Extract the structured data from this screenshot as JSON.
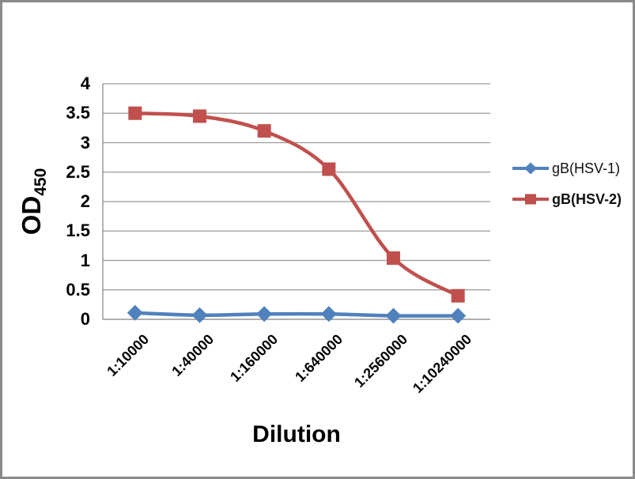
{
  "frame": {
    "border_color": "#8a8a8a",
    "background_color": "#ffffff"
  },
  "chart_data": {
    "type": "line",
    "title": "",
    "xlabel": "Dilution",
    "ylabel": "OD",
    "ylabel_subscript": "450",
    "categories": [
      "1:10000",
      "1:40000",
      "1:160000",
      "1:640000",
      "1:2560000",
      "1:10240000"
    ],
    "series": [
      {
        "name": "gB(HSV-1)",
        "color": "#4F81BD",
        "marker": "diamond",
        "legend_bold": false,
        "values": [
          0.11,
          0.07,
          0.09,
          0.09,
          0.06,
          0.06
        ]
      },
      {
        "name": "gB(HSV-2)",
        "color": "#C0504D",
        "marker": "square",
        "legend_bold": true,
        "values": [
          3.5,
          3.45,
          3.2,
          2.55,
          1.04,
          0.4
        ]
      }
    ],
    "y_ticks": [
      0,
      0.5,
      1,
      1.5,
      2,
      2.5,
      3,
      3.5,
      4
    ],
    "y_tick_labels": [
      "0",
      "0.5",
      "1",
      "1.5",
      "2",
      "2.5",
      "3",
      "3.5",
      "4"
    ],
    "ylim": [
      0,
      4
    ],
    "grid": "horizontal",
    "grid_color": "#9a9a9a",
    "axis_color": "#8c8c8c",
    "smooth_lines": true,
    "legend_position": "right"
  }
}
